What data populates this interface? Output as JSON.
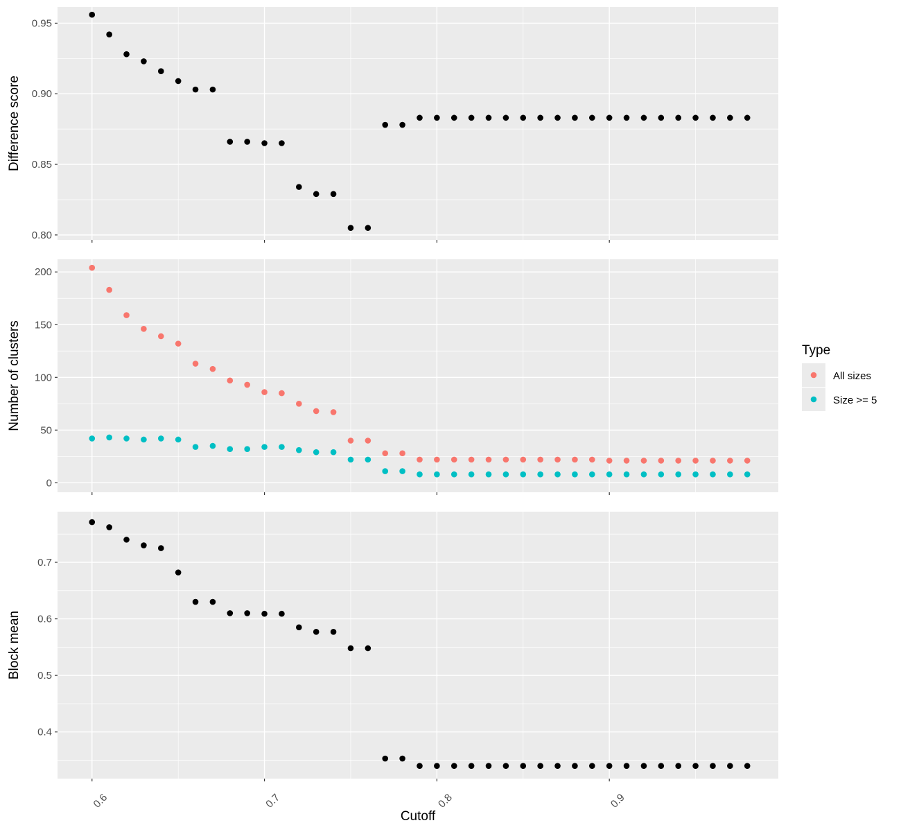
{
  "chart_data": [
    {
      "type": "scatter",
      "ylabel": "Difference score",
      "xlim": [
        0.58,
        0.998
      ],
      "ylim": [
        0.7965,
        0.9615
      ],
      "grid": true,
      "x_ticks": [
        0.6,
        0.7,
        0.8,
        0.9
      ],
      "y_ticks": [
        "0.80",
        "0.85",
        "0.90",
        "0.95"
      ],
      "x": [
        0.6,
        0.61,
        0.62,
        0.63,
        0.64,
        0.65,
        0.66,
        0.67,
        0.68,
        0.69,
        0.7,
        0.71,
        0.72,
        0.73,
        0.74,
        0.75,
        0.76,
        0.77,
        0.78,
        0.79,
        0.8,
        0.81,
        0.82,
        0.83,
        0.84,
        0.85,
        0.86,
        0.87,
        0.88,
        0.89,
        0.9,
        0.91,
        0.92,
        0.93,
        0.94,
        0.95,
        0.96,
        0.97,
        0.98
      ],
      "series": [
        {
          "color": "#000000",
          "values": [
            0.956,
            0.942,
            0.928,
            0.923,
            0.916,
            0.909,
            0.903,
            0.903,
            0.866,
            0.866,
            0.865,
            0.865,
            0.834,
            0.829,
            0.829,
            0.805,
            0.805,
            0.878,
            0.878,
            0.883,
            0.883,
            0.883,
            0.883,
            0.883,
            0.883,
            0.883,
            0.883,
            0.883,
            0.883,
            0.883,
            0.883,
            0.883,
            0.883,
            0.883,
            0.883,
            0.883,
            0.883,
            0.883,
            0.883
          ]
        }
      ]
    },
    {
      "type": "scatter",
      "ylabel": "Number of clusters",
      "xlim": [
        0.58,
        0.998
      ],
      "ylim": [
        -9,
        212
      ],
      "grid": true,
      "x_ticks": [
        0.6,
        0.7,
        0.8,
        0.9
      ],
      "y_ticks": [
        "0",
        "50",
        "100",
        "150",
        "200"
      ],
      "x": [
        0.6,
        0.61,
        0.62,
        0.63,
        0.64,
        0.65,
        0.66,
        0.67,
        0.68,
        0.69,
        0.7,
        0.71,
        0.72,
        0.73,
        0.74,
        0.75,
        0.76,
        0.77,
        0.78,
        0.79,
        0.8,
        0.81,
        0.82,
        0.83,
        0.84,
        0.85,
        0.86,
        0.87,
        0.88,
        0.89,
        0.9,
        0.91,
        0.92,
        0.93,
        0.94,
        0.95,
        0.96,
        0.97,
        0.98
      ],
      "series": [
        {
          "name": "All sizes",
          "color": "#F8766D",
          "values": [
            204,
            183,
            159,
            146,
            139,
            132,
            113,
            108,
            97,
            93,
            86,
            85,
            75,
            68,
            67,
            40,
            40,
            28,
            28,
            22,
            22,
            22,
            22,
            22,
            22,
            22,
            22,
            22,
            22,
            22,
            21,
            21,
            21,
            21,
            21,
            21,
            21,
            21,
            21
          ]
        },
        {
          "name": "Size >= 5",
          "color": "#00BFC4",
          "values": [
            42,
            43,
            42,
            41,
            42,
            41,
            34,
            35,
            32,
            32,
            34,
            34,
            31,
            29,
            29,
            22,
            22,
            11,
            11,
            8,
            8,
            8,
            8,
            8,
            8,
            8,
            8,
            8,
            8,
            8,
            8,
            8,
            8,
            8,
            8,
            8,
            8,
            8,
            8
          ]
        }
      ],
      "legend": {
        "title": "Type",
        "placement": "right",
        "entries": [
          "All sizes",
          "Size >= 5"
        ]
      }
    },
    {
      "type": "scatter",
      "ylabel": "Block mean",
      "xlabel": "Cutoff",
      "xlim": [
        0.58,
        0.998
      ],
      "ylim": [
        0.3175,
        0.7895
      ],
      "grid": true,
      "x_ticks": [
        0.6,
        0.7,
        0.8,
        0.9
      ],
      "y_ticks": [
        "0.4",
        "0.5",
        "0.6",
        "0.7"
      ],
      "x": [
        0.6,
        0.61,
        0.62,
        0.63,
        0.64,
        0.65,
        0.66,
        0.67,
        0.68,
        0.69,
        0.7,
        0.71,
        0.72,
        0.73,
        0.74,
        0.75,
        0.76,
        0.77,
        0.78,
        0.79,
        0.8,
        0.81,
        0.82,
        0.83,
        0.84,
        0.85,
        0.86,
        0.87,
        0.88,
        0.89,
        0.9,
        0.91,
        0.92,
        0.93,
        0.94,
        0.95,
        0.96,
        0.97,
        0.98
      ],
      "series": [
        {
          "color": "#000000",
          "values": [
            0.771,
            0.762,
            0.74,
            0.73,
            0.725,
            0.682,
            0.63,
            0.63,
            0.61,
            0.61,
            0.609,
            0.609,
            0.585,
            0.577,
            0.577,
            0.548,
            0.548,
            0.353,
            0.353,
            0.34,
            0.34,
            0.34,
            0.34,
            0.34,
            0.34,
            0.34,
            0.34,
            0.34,
            0.34,
            0.34,
            0.34,
            0.34,
            0.34,
            0.34,
            0.34,
            0.34,
            0.34,
            0.34,
            0.34
          ]
        }
      ]
    }
  ]
}
